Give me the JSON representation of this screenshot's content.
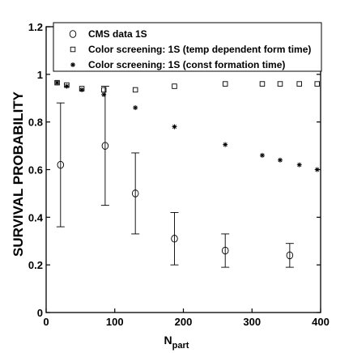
{
  "chart_data": {
    "type": "scatter",
    "title": "",
    "xlabel": "N",
    "xlabel_sub": "part",
    "ylabel": "SURVIVAL PROBABILITY",
    "xlim": [
      0,
      400
    ],
    "ylim": [
      0,
      1.2
    ],
    "x_ticks": [
      "0",
      "100",
      "200",
      "300",
      "400"
    ],
    "y_ticks": [
      "0",
      "0.2",
      "0.4",
      "0.6",
      "0.8",
      "1",
      "1.2"
    ],
    "grid": false,
    "legend_position": "top-right",
    "series": [
      {
        "name": "CMS data 1S",
        "marker": "circle",
        "x": [
          21,
          86,
          130,
          187,
          261,
          355
        ],
        "y": [
          0.62,
          0.7,
          0.5,
          0.31,
          0.26,
          0.24
        ],
        "error_low": [
          0.36,
          0.45,
          0.33,
          0.2,
          0.19,
          0.19
        ],
        "error_high": [
          0.88,
          0.95,
          0.67,
          0.42,
          0.33,
          0.29
        ]
      },
      {
        "name": "Color screening: 1S (temp dependent form time)",
        "marker": "square",
        "x": [
          16,
          30,
          52,
          84,
          130,
          187,
          261,
          315,
          341,
          369,
          395
        ],
        "y": [
          0.965,
          0.955,
          0.94,
          0.935,
          0.935,
          0.95,
          0.96,
          0.96,
          0.96,
          0.96,
          0.96
        ]
      },
      {
        "name": "Color screening: 1S (const formation time)",
        "marker": "star",
        "x": [
          16,
          30,
          52,
          84,
          130,
          187,
          261,
          315,
          341,
          369,
          395
        ],
        "y": [
          0.965,
          0.95,
          0.935,
          0.915,
          0.86,
          0.78,
          0.705,
          0.66,
          0.64,
          0.62,
          0.6
        ]
      }
    ]
  }
}
